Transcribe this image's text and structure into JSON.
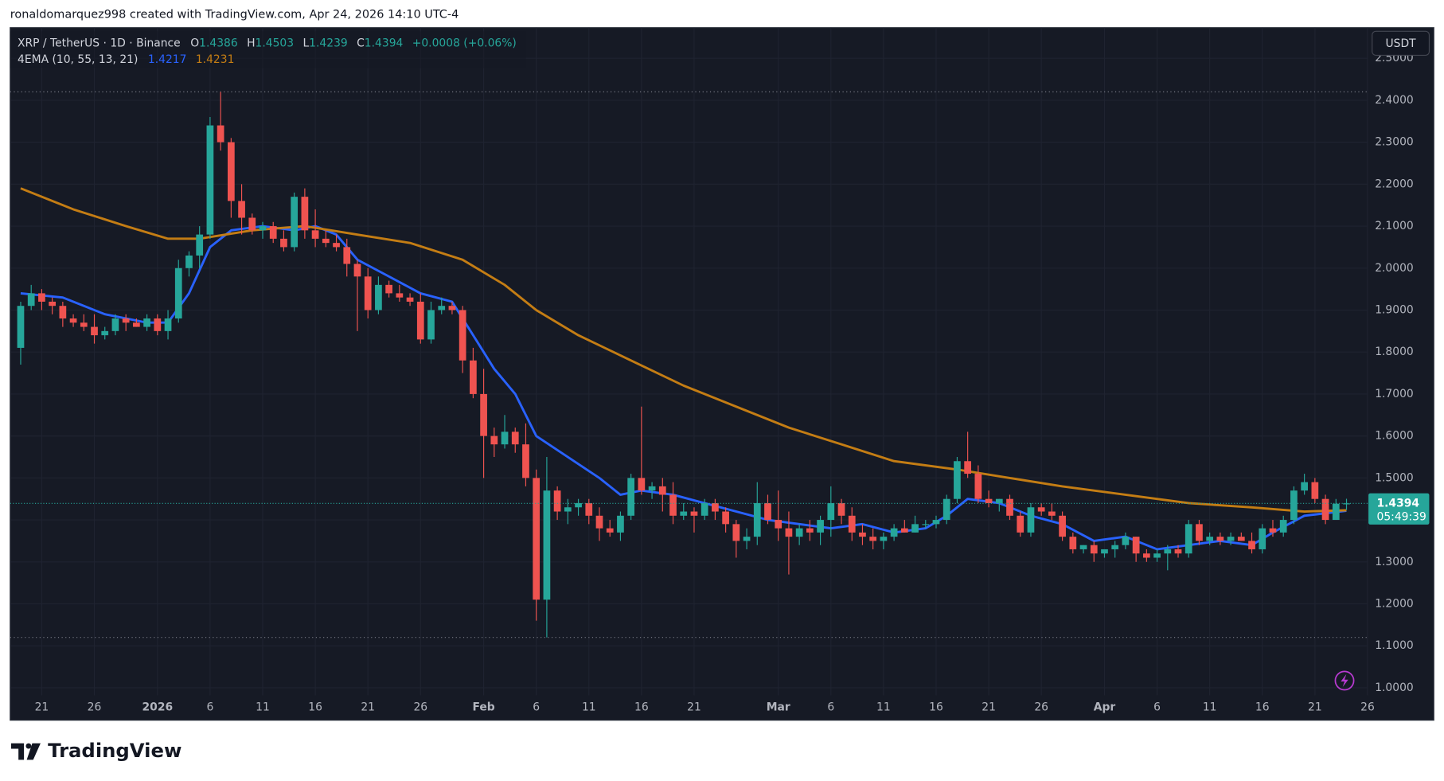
{
  "snapshot_caption": "ronaldomarquez998 created with TradingView.com, Apr 24, 2026 14:10 UTC-4",
  "footer": {
    "brand": "TradingView"
  },
  "chart_data": {
    "type": "candlestick",
    "title": "XRP / TetherUS · 1D · Binance",
    "ohlc_labels": [
      "O",
      "H",
      "L",
      "C"
    ],
    "change": "+0.0008 (+0.06%)",
    "currency": "USDT",
    "countdown": "05:49:39",
    "up_color": "#26a69a",
    "down_color": "#ef5350",
    "grid": true,
    "xlim": [
      "2025-12-18",
      "2026-04-26"
    ],
    "ylim": [
      0.982,
      2.573
    ],
    "yticks": [
      {
        "value": 1.0,
        "label": "1.0000"
      },
      {
        "value": 1.1,
        "label": "1.1000"
      },
      {
        "value": 1.2,
        "label": "1.2000"
      },
      {
        "value": 1.3,
        "label": "1.3000"
      },
      {
        "value": 1.4,
        "label": "1.4000"
      },
      {
        "value": 1.5,
        "label": "1.5000"
      },
      {
        "value": 1.6,
        "label": "1.6000"
      },
      {
        "value": 1.7,
        "label": "1.7000"
      },
      {
        "value": 1.8,
        "label": "1.8000"
      },
      {
        "value": 1.9,
        "label": "1.9000"
      },
      {
        "value": 2.0,
        "label": "2.0000"
      },
      {
        "value": 2.1,
        "label": "2.1000"
      },
      {
        "value": 2.2,
        "label": "2.2000"
      },
      {
        "value": 2.3,
        "label": "2.3000"
      },
      {
        "value": 2.4,
        "label": "2.4000"
      },
      {
        "value": 2.5,
        "label": "2.5000"
      }
    ],
    "xticks": [
      {
        "value": "2025-12-21",
        "label": "21"
      },
      {
        "value": "2025-12-26",
        "label": "26"
      },
      {
        "value": "2026-01-01",
        "label": "2026"
      },
      {
        "value": "2026-01-06",
        "label": "6"
      },
      {
        "value": "2026-01-11",
        "label": "11"
      },
      {
        "value": "2026-01-16",
        "label": "16"
      },
      {
        "value": "2026-01-21",
        "label": "21"
      },
      {
        "value": "2026-01-26",
        "label": "26"
      },
      {
        "value": "2026-02-01",
        "label": "Feb"
      },
      {
        "value": "2026-02-06",
        "label": "6"
      },
      {
        "value": "2026-02-11",
        "label": "11"
      },
      {
        "value": "2026-02-16",
        "label": "16"
      },
      {
        "value": "2026-02-21",
        "label": "21"
      },
      {
        "value": "2026-03-01",
        "label": "Mar"
      },
      {
        "value": "2026-03-06",
        "label": "6"
      },
      {
        "value": "2026-03-11",
        "label": "11"
      },
      {
        "value": "2026-03-16",
        "label": "16"
      },
      {
        "value": "2026-03-21",
        "label": "21"
      },
      {
        "value": "2026-03-26",
        "label": "26"
      },
      {
        "value": "2026-04-01",
        "label": "Apr"
      },
      {
        "value": "2026-04-06",
        "label": "6"
      },
      {
        "value": "2026-04-11",
        "label": "11"
      },
      {
        "value": "2026-04-16",
        "label": "16"
      },
      {
        "value": "2026-04-21",
        "label": "21"
      },
      {
        "value": "2026-04-26",
        "label": "26"
      }
    ],
    "x": [
      "2025-12-19",
      "2025-12-20",
      "2025-12-21",
      "2025-12-22",
      "2025-12-23",
      "2025-12-24",
      "2025-12-25",
      "2025-12-26",
      "2025-12-27",
      "2025-12-28",
      "2025-12-29",
      "2025-12-30",
      "2025-12-31",
      "2026-01-01",
      "2026-01-02",
      "2026-01-03",
      "2026-01-04",
      "2026-01-05",
      "2026-01-06",
      "2026-01-07",
      "2026-01-08",
      "2026-01-09",
      "2026-01-10",
      "2026-01-11",
      "2026-01-12",
      "2026-01-13",
      "2026-01-14",
      "2026-01-15",
      "2026-01-16",
      "2026-01-17",
      "2026-01-18",
      "2026-01-19",
      "2026-01-20",
      "2026-01-21",
      "2026-01-22",
      "2026-01-23",
      "2026-01-24",
      "2026-01-25",
      "2026-01-26",
      "2026-01-27",
      "2026-01-28",
      "2026-01-29",
      "2026-01-30",
      "2026-01-31",
      "2026-02-01",
      "2026-02-02",
      "2026-02-03",
      "2026-02-04",
      "2026-02-05",
      "2026-02-06",
      "2026-02-07",
      "2026-02-08",
      "2026-02-09",
      "2026-02-10",
      "2026-02-11",
      "2026-02-12",
      "2026-02-13",
      "2026-02-14",
      "2026-02-15",
      "2026-02-16",
      "2026-02-17",
      "2026-02-18",
      "2026-02-19",
      "2026-02-20",
      "2026-02-21",
      "2026-02-22",
      "2026-02-23",
      "2026-02-24",
      "2026-02-25",
      "2026-02-26",
      "2026-02-27",
      "2026-02-28",
      "2026-03-01",
      "2026-03-02",
      "2026-03-03",
      "2026-03-04",
      "2026-03-05",
      "2026-03-06",
      "2026-03-07",
      "2026-03-08",
      "2026-03-09",
      "2026-03-10",
      "2026-03-11",
      "2026-03-12",
      "2026-03-13",
      "2026-03-14",
      "2026-03-15",
      "2026-03-16",
      "2026-03-17",
      "2026-03-18",
      "2026-03-19",
      "2026-03-20",
      "2026-03-21",
      "2026-03-22",
      "2026-03-23",
      "2026-03-24",
      "2026-03-25",
      "2026-03-26",
      "2026-03-27",
      "2026-03-28",
      "2026-03-29",
      "2026-03-30",
      "2026-03-31",
      "2026-04-01",
      "2026-04-02",
      "2026-04-03",
      "2026-04-04",
      "2026-04-05",
      "2026-04-06",
      "2026-04-07",
      "2026-04-08",
      "2026-04-09",
      "2026-04-10",
      "2026-04-11",
      "2026-04-12",
      "2026-04-13",
      "2026-04-14",
      "2026-04-15",
      "2026-04-16",
      "2026-04-17",
      "2026-04-18",
      "2026-04-19",
      "2026-04-20",
      "2026-04-21",
      "2026-04-22",
      "2026-04-23",
      "2026-04-24"
    ],
    "open": [
      1.81,
      1.91,
      1.94,
      1.92,
      1.91,
      1.88,
      1.87,
      1.86,
      1.84,
      1.85,
      1.88,
      1.87,
      1.86,
      1.88,
      1.85,
      1.88,
      2.0,
      2.03,
      2.08,
      2.34,
      2.3,
      2.16,
      2.12,
      2.09,
      2.1,
      2.07,
      2.05,
      2.17,
      2.09,
      2.07,
      2.06,
      2.05,
      2.01,
      1.98,
      1.9,
      1.96,
      1.94,
      1.93,
      1.92,
      1.83,
      1.9,
      1.91,
      1.9,
      1.78,
      1.7,
      1.6,
      1.58,
      1.61,
      1.58,
      1.5,
      1.21,
      1.47,
      1.42,
      1.43,
      1.44,
      1.41,
      1.38,
      1.37,
      1.41,
      1.5,
      1.47,
      1.48,
      1.46,
      1.41,
      1.42,
      1.41,
      1.44,
      1.42,
      1.39,
      1.35,
      1.36,
      1.44,
      1.4,
      1.38,
      1.36,
      1.38,
      1.37,
      1.4,
      1.44,
      1.41,
      1.37,
      1.36,
      1.35,
      1.36,
      1.38,
      1.37,
      1.39,
      1.39,
      1.4,
      1.45,
      1.54,
      1.51,
      1.45,
      1.44,
      1.45,
      1.41,
      1.37,
      1.43,
      1.42,
      1.41,
      1.36,
      1.33,
      1.34,
      1.32,
      1.33,
      1.34,
      1.36,
      1.32,
      1.31,
      1.32,
      1.33,
      1.32,
      1.39,
      1.35,
      1.36,
      1.35,
      1.36,
      1.35,
      1.33,
      1.38,
      1.37,
      1.4,
      1.47,
      1.49,
      1.45,
      1.4,
      1.4386
    ],
    "high": [
      1.92,
      1.96,
      1.95,
      1.93,
      1.92,
      1.89,
      1.89,
      1.89,
      1.86,
      1.89,
      1.89,
      1.88,
      1.89,
      1.89,
      1.9,
      2.02,
      2.04,
      2.1,
      2.36,
      2.42,
      2.31,
      2.2,
      2.13,
      2.11,
      2.11,
      2.09,
      2.18,
      2.19,
      2.14,
      2.09,
      2.08,
      2.07,
      2.02,
      2.0,
      1.98,
      1.97,
      1.96,
      1.94,
      1.94,
      1.92,
      1.93,
      1.92,
      1.91,
      1.81,
      1.76,
      1.62,
      1.65,
      1.62,
      1.63,
      1.52,
      1.55,
      1.48,
      1.45,
      1.45,
      1.45,
      1.43,
      1.4,
      1.42,
      1.51,
      1.67,
      1.49,
      1.5,
      1.49,
      1.44,
      1.43,
      1.45,
      1.45,
      1.43,
      1.4,
      1.38,
      1.49,
      1.46,
      1.47,
      1.42,
      1.39,
      1.4,
      1.41,
      1.48,
      1.45,
      1.43,
      1.39,
      1.38,
      1.37,
      1.39,
      1.4,
      1.41,
      1.4,
      1.41,
      1.46,
      1.55,
      1.61,
      1.53,
      1.47,
      1.45,
      1.46,
      1.42,
      1.44,
      1.44,
      1.44,
      1.42,
      1.37,
      1.34,
      1.35,
      1.33,
      1.35,
      1.37,
      1.36,
      1.33,
      1.33,
      1.34,
      1.34,
      1.4,
      1.4,
      1.37,
      1.37,
      1.37,
      1.37,
      1.37,
      1.39,
      1.4,
      1.41,
      1.48,
      1.51,
      1.5,
      1.46,
      1.45,
      1.4503
    ],
    "low": [
      1.77,
      1.9,
      1.9,
      1.89,
      1.86,
      1.86,
      1.85,
      1.82,
      1.83,
      1.84,
      1.85,
      1.86,
      1.85,
      1.84,
      1.83,
      1.87,
      1.98,
      2.0,
      2.07,
      2.28,
      2.12,
      2.08,
      2.08,
      2.07,
      2.06,
      2.04,
      2.04,
      2.07,
      2.05,
      2.05,
      2.04,
      1.98,
      1.85,
      1.88,
      1.89,
      1.93,
      1.92,
      1.91,
      1.82,
      1.82,
      1.89,
      1.89,
      1.75,
      1.69,
      1.5,
      1.55,
      1.57,
      1.56,
      1.48,
      1.16,
      1.12,
      1.4,
      1.39,
      1.41,
      1.39,
      1.35,
      1.36,
      1.35,
      1.4,
      1.46,
      1.45,
      1.42,
      1.39,
      1.4,
      1.37,
      1.4,
      1.4,
      1.37,
      1.31,
      1.33,
      1.34,
      1.39,
      1.35,
      1.27,
      1.34,
      1.35,
      1.34,
      1.36,
      1.39,
      1.35,
      1.34,
      1.33,
      1.33,
      1.35,
      1.37,
      1.37,
      1.38,
      1.38,
      1.39,
      1.44,
      1.5,
      1.44,
      1.43,
      1.42,
      1.4,
      1.36,
      1.36,
      1.41,
      1.4,
      1.35,
      1.32,
      1.32,
      1.3,
      1.31,
      1.31,
      1.33,
      1.3,
      1.3,
      1.3,
      1.28,
      1.31,
      1.31,
      1.34,
      1.34,
      1.34,
      1.34,
      1.35,
      1.32,
      1.32,
      1.36,
      1.36,
      1.39,
      1.46,
      1.44,
      1.39,
      1.4,
      1.4239
    ],
    "close": [
      1.91,
      1.94,
      1.92,
      1.91,
      1.88,
      1.87,
      1.86,
      1.84,
      1.85,
      1.88,
      1.87,
      1.86,
      1.88,
      1.85,
      1.88,
      2.0,
      2.03,
      2.08,
      2.34,
      2.3,
      2.16,
      2.12,
      2.09,
      2.1,
      2.07,
      2.05,
      2.17,
      2.09,
      2.07,
      2.06,
      2.05,
      2.01,
      1.98,
      1.9,
      1.96,
      1.94,
      1.93,
      1.92,
      1.83,
      1.9,
      1.91,
      1.9,
      1.78,
      1.7,
      1.6,
      1.58,
      1.61,
      1.58,
      1.5,
      1.21,
      1.47,
      1.42,
      1.43,
      1.44,
      1.41,
      1.38,
      1.37,
      1.41,
      1.5,
      1.47,
      1.48,
      1.46,
      1.41,
      1.42,
      1.41,
      1.44,
      1.42,
      1.39,
      1.35,
      1.36,
      1.44,
      1.4,
      1.38,
      1.36,
      1.38,
      1.37,
      1.4,
      1.44,
      1.41,
      1.37,
      1.36,
      1.35,
      1.36,
      1.38,
      1.37,
      1.39,
      1.39,
      1.4,
      1.45,
      1.54,
      1.51,
      1.45,
      1.44,
      1.45,
      1.41,
      1.37,
      1.43,
      1.42,
      1.41,
      1.36,
      1.33,
      1.34,
      1.32,
      1.33,
      1.34,
      1.36,
      1.32,
      1.31,
      1.32,
      1.33,
      1.32,
      1.39,
      1.35,
      1.36,
      1.35,
      1.36,
      1.35,
      1.33,
      1.38,
      1.37,
      1.4,
      1.47,
      1.49,
      1.45,
      1.4,
      1.4386,
      1.4394
    ],
    "overlay_name": "4EMA (10, 55, 13, 21)",
    "overlays": [
      {
        "color": "#2962ff",
        "x": [
          "2025-12-19",
          "2025-12-23",
          "2025-12-27",
          "2025-12-31",
          "2026-01-02",
          "2026-01-04",
          "2026-01-06",
          "2026-01-08",
          "2026-01-11",
          "2026-01-14",
          "2026-01-16",
          "2026-01-18",
          "2026-01-20",
          "2026-01-23",
          "2026-01-26",
          "2026-01-29",
          "2026-01-31",
          "2026-02-02",
          "2026-02-04",
          "2026-02-06",
          "2026-02-09",
          "2026-02-12",
          "2026-02-14",
          "2026-02-16",
          "2026-02-19",
          "2026-02-22",
          "2026-02-25",
          "2026-02-28",
          "2026-03-03",
          "2026-03-06",
          "2026-03-09",
          "2026-03-12",
          "2026-03-15",
          "2026-03-17",
          "2026-03-19",
          "2026-03-22",
          "2026-03-25",
          "2026-03-28",
          "2026-03-31",
          "2026-04-03",
          "2026-04-06",
          "2026-04-09",
          "2026-04-12",
          "2026-04-15",
          "2026-04-17",
          "2026-04-20",
          "2026-04-24"
        ],
        "values": [
          1.94,
          1.93,
          1.89,
          1.87,
          1.87,
          1.94,
          2.05,
          2.09,
          2.1,
          2.09,
          2.1,
          2.08,
          2.02,
          1.98,
          1.94,
          1.92,
          1.84,
          1.76,
          1.7,
          1.6,
          1.55,
          1.5,
          1.46,
          1.47,
          1.46,
          1.44,
          1.42,
          1.4,
          1.39,
          1.38,
          1.39,
          1.37,
          1.38,
          1.41,
          1.45,
          1.44,
          1.41,
          1.39,
          1.35,
          1.36,
          1.33,
          1.34,
          1.35,
          1.34,
          1.37,
          1.41,
          1.4217
        ]
      },
      {
        "color": "#c47d14",
        "x": [
          "2025-12-19",
          "2025-12-24",
          "2025-12-29",
          "2026-01-02",
          "2026-01-05",
          "2026-01-10",
          "2026-01-15",
          "2026-01-20",
          "2026-01-25",
          "2026-01-30",
          "2026-02-03",
          "2026-02-06",
          "2026-02-10",
          "2026-02-15",
          "2026-02-20",
          "2026-02-25",
          "2026-03-02",
          "2026-03-07",
          "2026-03-12",
          "2026-03-18",
          "2026-03-23",
          "2026-03-28",
          "2026-04-03",
          "2026-04-09",
          "2026-04-15",
          "2026-04-20",
          "2026-04-24"
        ],
        "values": [
          2.19,
          2.14,
          2.1,
          2.07,
          2.07,
          2.09,
          2.1,
          2.08,
          2.06,
          2.02,
          1.96,
          1.9,
          1.84,
          1.78,
          1.72,
          1.67,
          1.62,
          1.58,
          1.54,
          1.52,
          1.5,
          1.48,
          1.46,
          1.44,
          1.43,
          1.42,
          1.4231
        ]
      }
    ]
  }
}
